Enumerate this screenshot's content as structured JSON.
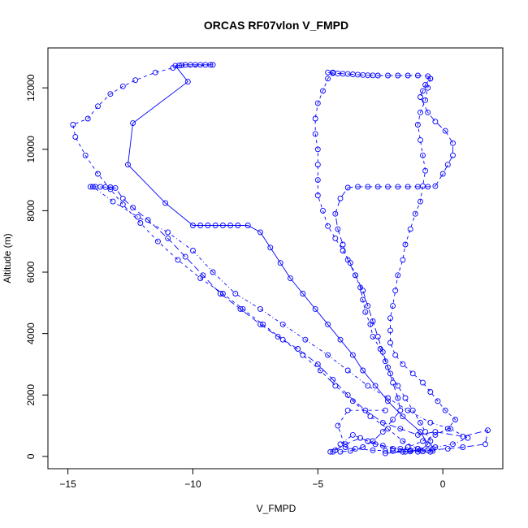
{
  "chart_data": {
    "type": "line",
    "title": "ORCAS RF07vlon V_FMPD",
    "xlabel": "V_FMPD",
    "ylabel": "Altitude (m)",
    "xlim": [
      -15.8,
      2.4
    ],
    "ylim": [
      -400,
      13300
    ],
    "x_ticks": [
      -15,
      -10,
      -5,
      0
    ],
    "y_ticks": [
      0,
      2000,
      4000,
      6000,
      8000,
      10000,
      12000
    ],
    "grid": false,
    "legend": "none",
    "series_color": "#0000ff",
    "marker": "open-circle",
    "segments": [
      {
        "line_style": "solid",
        "points": [
          [
            -9.2,
            12750
          ],
          [
            -9.5,
            12750
          ],
          [
            -9.7,
            12750
          ],
          [
            -9.9,
            12750
          ],
          [
            -10.1,
            12750
          ],
          [
            -10.3,
            12750
          ],
          [
            -10.45,
            12740
          ],
          [
            -10.55,
            12730
          ],
          [
            -10.7,
            12720
          ],
          [
            -10.2,
            12200
          ],
          [
            -12.4,
            10850
          ],
          [
            -12.6,
            9500
          ],
          [
            -11.1,
            8250
          ],
          [
            -10.0,
            7520
          ],
          [
            -9.7,
            7520
          ],
          [
            -9.4,
            7520
          ],
          [
            -9.1,
            7520
          ],
          [
            -8.8,
            7520
          ],
          [
            -8.5,
            7520
          ],
          [
            -8.2,
            7520
          ],
          [
            -7.8,
            7520
          ],
          [
            -7.3,
            7300
          ],
          [
            -6.9,
            6800
          ],
          [
            -6.5,
            6300
          ],
          [
            -6.1,
            5800
          ],
          [
            -5.6,
            5300
          ],
          [
            -5.1,
            4800
          ],
          [
            -4.6,
            4300
          ],
          [
            -4.1,
            3800
          ],
          [
            -3.6,
            3300
          ],
          [
            -3.2,
            2800
          ],
          [
            -2.7,
            2300
          ],
          [
            -2.2,
            1800
          ],
          [
            -1.6,
            1300
          ],
          [
            -0.9,
            800
          ],
          [
            -0.6,
            400
          ],
          [
            -0.9,
            200
          ],
          [
            -1.5,
            150
          ],
          [
            -2.3,
            100
          ]
        ]
      },
      {
        "line_style": "dash",
        "points": [
          [
            -9.3,
            12750
          ],
          [
            -10.8,
            12650
          ],
          [
            -11.5,
            12500
          ],
          [
            -12.3,
            12250
          ],
          [
            -12.8,
            12050
          ],
          [
            -13.3,
            11800
          ],
          [
            -13.8,
            11400
          ],
          [
            -14.2,
            11000
          ],
          [
            -14.8,
            10800
          ],
          [
            -14.7,
            10400
          ],
          [
            -14.3,
            9800
          ],
          [
            -13.8,
            9200
          ],
          [
            -13.3,
            8700
          ],
          [
            -12.8,
            8200
          ],
          [
            -12.1,
            7600
          ],
          [
            -11.4,
            7000
          ],
          [
            -10.6,
            6400
          ],
          [
            -9.7,
            5800
          ],
          [
            -8.8,
            5300
          ],
          [
            -8.0,
            4800
          ],
          [
            -7.2,
            4300
          ],
          [
            -6.4,
            3800
          ],
          [
            -5.6,
            3300
          ],
          [
            -4.9,
            2800
          ],
          [
            -4.3,
            2300
          ],
          [
            -3.6,
            1800
          ],
          [
            -2.9,
            1300
          ],
          [
            -2.2,
            900
          ],
          [
            -1.6,
            500
          ],
          [
            -1.0,
            250
          ],
          [
            -0.4,
            180
          ],
          [
            -0.8,
            160
          ],
          [
            -1.3,
            160
          ],
          [
            -2.0,
            180
          ],
          [
            -2.8,
            200
          ],
          [
            -3.5,
            250
          ],
          [
            -3.9,
            300
          ],
          [
            -4.2,
            1000
          ],
          [
            -3.8,
            1500
          ],
          [
            -2.3,
            1500
          ]
        ]
      },
      {
        "line_style": "longdash",
        "points": [
          [
            -14.1,
            8780
          ],
          [
            -13.9,
            8780
          ],
          [
            -13.7,
            8775
          ],
          [
            -13.5,
            8770
          ],
          [
            -13.3,
            8765
          ],
          [
            -13.1,
            8740
          ],
          [
            -12.8,
            8400
          ],
          [
            -12.4,
            8100
          ],
          [
            -11.8,
            7700
          ],
          [
            -11.0,
            7100
          ],
          [
            -10.3,
            6500
          ],
          [
            -9.6,
            5900
          ],
          [
            -8.9,
            5300
          ],
          [
            -8.1,
            4800
          ],
          [
            -7.3,
            4300
          ],
          [
            -6.6,
            3900
          ],
          [
            -5.8,
            3500
          ],
          [
            -5.0,
            3000
          ],
          [
            -4.4,
            2500
          ],
          [
            -3.8,
            2000
          ],
          [
            -3.1,
            1500
          ],
          [
            -2.4,
            1100
          ],
          [
            -1.7,
            900
          ],
          [
            -1.0,
            700
          ],
          [
            -0.3,
            800
          ],
          [
            0.8,
            650
          ],
          [
            1.8,
            850
          ],
          [
            1.7,
            400
          ],
          [
            0.8,
            300
          ],
          [
            0.2,
            250
          ],
          [
            -0.6,
            200
          ],
          [
            -1.3,
            200
          ],
          [
            -2.0,
            250
          ],
          [
            -2.7,
            400
          ],
          [
            -3.3,
            600
          ],
          [
            -3.9,
            400
          ],
          [
            -4.3,
            200
          ],
          [
            -4.5,
            150
          ]
        ]
      },
      {
        "line_style": "dashdot",
        "points": [
          [
            -14.0,
            8780
          ],
          [
            -13.2,
            8300
          ],
          [
            -12.2,
            7800
          ],
          [
            -11.0,
            7300
          ],
          [
            -10.0,
            6700
          ],
          [
            -9.2,
            6000
          ],
          [
            -8.3,
            5300
          ],
          [
            -7.3,
            4800
          ],
          [
            -6.4,
            4300
          ],
          [
            -5.5,
            3800
          ],
          [
            -4.6,
            3300
          ],
          [
            -3.8,
            2800
          ],
          [
            -3.0,
            2300
          ],
          [
            -2.2,
            1900
          ],
          [
            -1.4,
            1500
          ],
          [
            -0.5,
            1100
          ],
          [
            0.3,
            900
          ],
          [
            1.0,
            600
          ],
          [
            0.4,
            400
          ],
          [
            -0.3,
            300
          ],
          [
            -1.0,
            250
          ],
          [
            -1.7,
            250
          ],
          [
            -2.4,
            350
          ],
          [
            -3.0,
            500
          ],
          [
            -3.6,
            700
          ],
          [
            -4.1,
            400
          ],
          [
            -4.4,
            150
          ]
        ]
      },
      {
        "line_style": "longdash",
        "points": [
          [
            -4.6,
            12500
          ],
          [
            -4.4,
            12480
          ],
          [
            -4.2,
            12470
          ],
          [
            -4.0,
            12460
          ],
          [
            -3.8,
            12450
          ],
          [
            -3.6,
            12440
          ],
          [
            -3.4,
            12430
          ],
          [
            -3.2,
            12420
          ],
          [
            -3.0,
            12410
          ],
          [
            -2.8,
            12405
          ],
          [
            -2.6,
            12400
          ],
          [
            -2.2,
            12400
          ],
          [
            -1.8,
            12400
          ],
          [
            -1.4,
            12400
          ],
          [
            -1.0,
            12400
          ],
          [
            -0.6,
            12380
          ],
          [
            -0.5,
            12300
          ],
          [
            -0.7,
            12100
          ],
          [
            -0.8,
            11900
          ],
          [
            -0.9,
            11700
          ],
          [
            -0.6,
            11200
          ],
          [
            -0.3,
            10900
          ],
          [
            0.1,
            10600
          ],
          [
            0.4,
            10200
          ],
          [
            0.4,
            9800
          ],
          [
            0.2,
            9500
          ],
          [
            0.0,
            9200
          ],
          [
            -0.3,
            8800
          ],
          [
            -0.6,
            8780
          ],
          [
            -1.0,
            8780
          ],
          [
            -1.4,
            8780
          ],
          [
            -1.8,
            8780
          ],
          [
            -2.2,
            8780
          ],
          [
            -2.6,
            8780
          ],
          [
            -3.0,
            8780
          ],
          [
            -3.4,
            8780
          ],
          [
            -3.8,
            8750
          ],
          [
            -4.1,
            8400
          ],
          [
            -4.3,
            7900
          ],
          [
            -4.2,
            7400
          ],
          [
            -4.0,
            6900
          ],
          [
            -3.8,
            6400
          ],
          [
            -3.5,
            5900
          ],
          [
            -3.2,
            5400
          ],
          [
            -3.0,
            4900
          ],
          [
            -2.8,
            4400
          ],
          [
            -2.6,
            3900
          ],
          [
            -2.4,
            3400
          ],
          [
            -2.2,
            2900
          ],
          [
            -2.0,
            2400
          ],
          [
            -1.8,
            1900
          ],
          [
            -1.7,
            1500
          ],
          [
            -2.0,
            1200
          ],
          [
            -2.4,
            800
          ],
          [
            -2.8,
            500
          ],
          [
            -3.2,
            300
          ],
          [
            -3.7,
            180
          ],
          [
            -4.1,
            150
          ]
        ]
      },
      {
        "line_style": "dash",
        "points": [
          [
            -4.4,
            12500
          ],
          [
            -4.6,
            12300
          ],
          [
            -4.8,
            11900
          ],
          [
            -5.0,
            11500
          ],
          [
            -5.1,
            11000
          ],
          [
            -5.1,
            10500
          ],
          [
            -5.0,
            10000
          ],
          [
            -5.0,
            9500
          ],
          [
            -5.0,
            9000
          ],
          [
            -5.0,
            8500
          ],
          [
            -4.8,
            8000
          ],
          [
            -4.6,
            7500
          ],
          [
            -4.3,
            7100
          ],
          [
            -4.0,
            6700
          ],
          [
            -3.7,
            6300
          ],
          [
            -3.5,
            5900
          ],
          [
            -3.3,
            5500
          ],
          [
            -3.2,
            5100
          ],
          [
            -3.1,
            4700
          ],
          [
            -2.9,
            4300
          ],
          [
            -2.8,
            3900
          ],
          [
            -2.5,
            3500
          ],
          [
            -2.3,
            3100
          ],
          [
            -2.1,
            2700
          ],
          [
            -1.8,
            2300
          ],
          [
            -1.5,
            1900
          ],
          [
            -1.2,
            1500
          ],
          [
            -0.9,
            1100
          ],
          [
            -0.7,
            800
          ],
          [
            -0.5,
            500
          ],
          [
            -0.4,
            250
          ],
          [
            -0.5,
            150
          ],
          [
            -1.0,
            150
          ],
          [
            -1.6,
            150
          ],
          [
            -2.3,
            180
          ]
        ]
      },
      {
        "line_style": "dash",
        "points": [
          [
            -0.5,
            12300
          ],
          [
            -0.6,
            12000
          ],
          [
            -0.7,
            11600
          ],
          [
            -0.9,
            11200
          ],
          [
            -1.0,
            10800
          ],
          [
            -0.9,
            10300
          ],
          [
            -0.8,
            9800
          ],
          [
            -0.7,
            9300
          ],
          [
            -0.8,
            8800
          ],
          [
            -0.9,
            8300
          ],
          [
            -1.1,
            7900
          ],
          [
            -1.3,
            7400
          ],
          [
            -1.5,
            6900
          ],
          [
            -1.6,
            6400
          ],
          [
            -1.8,
            5900
          ],
          [
            -1.9,
            5400
          ],
          [
            -2.0,
            4900
          ],
          [
            -2.1,
            4500
          ],
          [
            -2.1,
            4100
          ],
          [
            -2.1,
            3700
          ],
          [
            -1.9,
            3300
          ],
          [
            -1.6,
            3000
          ],
          [
            -1.2,
            2700
          ],
          [
            -0.8,
            2400
          ],
          [
            -0.5,
            2100
          ],
          [
            -0.2,
            1800
          ],
          [
            0.1,
            1500
          ],
          [
            0.5,
            1200
          ],
          [
            0.2,
            900
          ],
          [
            -0.3,
            700
          ],
          [
            -0.8,
            500
          ],
          [
            -1.4,
            300
          ],
          [
            -2.0,
            180
          ]
        ]
      }
    ]
  }
}
